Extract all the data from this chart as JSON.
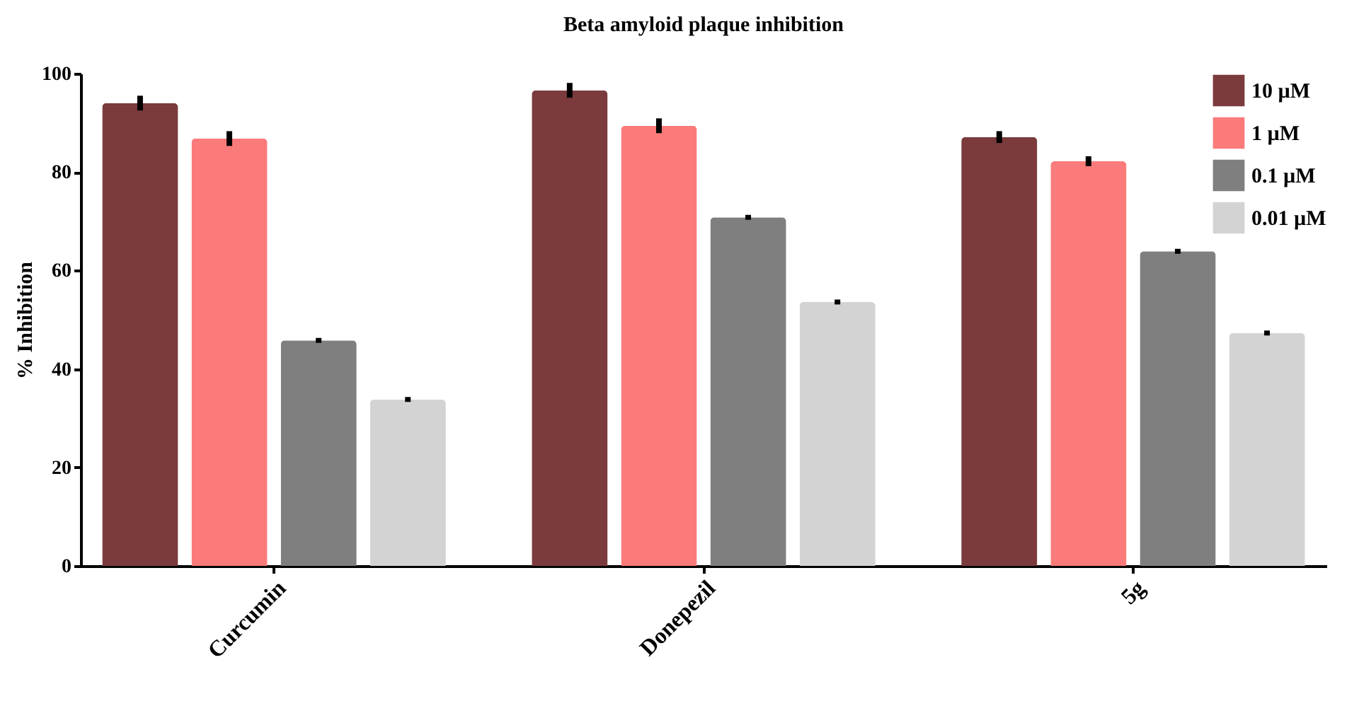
{
  "chart_data": {
    "type": "bar",
    "title": "Beta amyloid plaque inhibition",
    "ylabel": "% Inhibition",
    "categories": [
      "Curcumin",
      "Donepezil",
      "5g"
    ],
    "series": [
      {
        "name": "10 µM",
        "color": "#7b3b3d",
        "values": [
          94.0,
          96.6,
          87.1
        ],
        "errors": [
          1.5,
          1.5,
          1.2
        ]
      },
      {
        "name": "1 µM",
        "color": "#fb7b7b",
        "values": [
          86.8,
          89.4,
          82.2
        ],
        "errors": [
          1.5,
          1.5,
          1.0
        ]
      },
      {
        "name": "0.1 µM",
        "color": "#7f7f7f",
        "values": [
          45.8,
          70.8,
          63.9
        ],
        "errors": [
          0.5,
          0.5,
          0.5
        ]
      },
      {
        "name": "0.01 µM",
        "color": "#d3d3d3",
        "values": [
          33.8,
          53.6,
          47.3
        ],
        "errors": [
          0.5,
          0.5,
          0.5
        ]
      }
    ],
    "ylim": [
      0,
      100
    ],
    "yticks": [
      0,
      20,
      40,
      60,
      80,
      100
    ],
    "grid": false,
    "legend": "top right"
  }
}
